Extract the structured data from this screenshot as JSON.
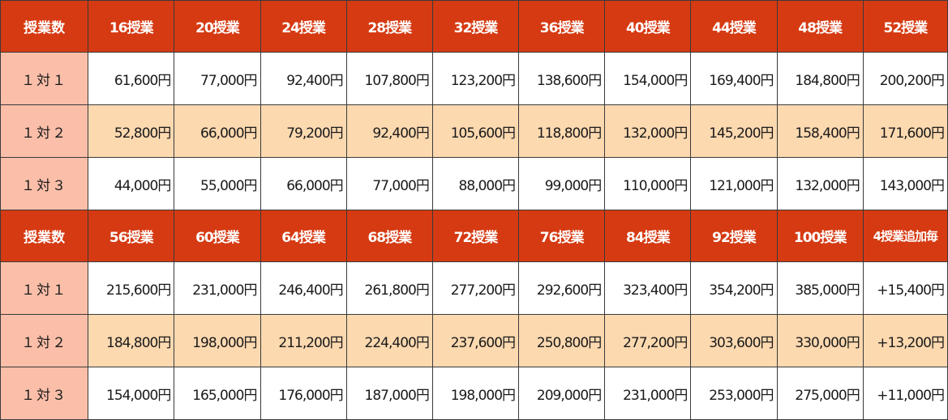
{
  "colors": {
    "header_bg": "#d63a12",
    "header_text": "#ffffff",
    "row_label_bg": "#fbbfa9",
    "peach_row_bg": "#fdd9b0",
    "white_row_bg": "#ffffff",
    "border": "#3a3a3a"
  },
  "sections": [
    {
      "header": {
        "label": "授業数",
        "columns": [
          "16授業",
          "20授業",
          "24授業",
          "28授業",
          "32授業",
          "36授業",
          "40授業",
          "44授業",
          "48授業",
          "52授業"
        ]
      },
      "rows": [
        {
          "label": "１対１",
          "values": [
            "61,600円",
            "77,000円",
            "92,400円",
            "107,800円",
            "123,200円",
            "138,600円",
            "154,000円",
            "169,400円",
            "184,800円",
            "200,200円"
          ]
        },
        {
          "label": "１対２",
          "values": [
            "52,800円",
            "66,000円",
            "79,200円",
            "92,400円",
            "105,600円",
            "118,800円",
            "132,000円",
            "145,200円",
            "158,400円",
            "171,600円"
          ]
        },
        {
          "label": "１対３",
          "values": [
            "44,000円",
            "55,000円",
            "66,000円",
            "77,000円",
            "88,000円",
            "99,000円",
            "110,000円",
            "121,000円",
            "132,000円",
            "143,000円"
          ]
        }
      ]
    },
    {
      "header": {
        "label": "授業数",
        "columns": [
          "56授業",
          "60授業",
          "64授業",
          "68授業",
          "72授業",
          "76授業",
          "84授業",
          "92授業",
          "100授業",
          "4授業追加毎"
        ]
      },
      "rows": [
        {
          "label": "１対１",
          "values": [
            "215,600円",
            "231,000円",
            "246,400円",
            "261,800円",
            "277,200円",
            "292,600円",
            "323,400円",
            "354,200円",
            "385,000円",
            "+15,400円"
          ]
        },
        {
          "label": "１対２",
          "values": [
            "184,800円",
            "198,000円",
            "211,200円",
            "224,400円",
            "237,600円",
            "250,800円",
            "277,200円",
            "303,600円",
            "330,000円",
            "+13,200円"
          ]
        },
        {
          "label": "１対３",
          "values": [
            "154,000円",
            "165,000円",
            "176,000円",
            "187,000円",
            "198,000円",
            "209,000円",
            "231,000円",
            "253,000円",
            "275,000円",
            "+11,000円"
          ]
        }
      ]
    }
  ]
}
